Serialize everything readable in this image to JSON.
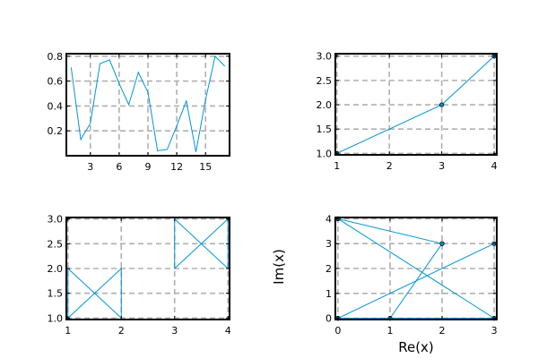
{
  "colors": {
    "series": "#0095d9",
    "grid": "#b0b0b0",
    "axes": "#000000",
    "marker_edge": "#000000"
  },
  "chart_data": [
    {
      "type": "line",
      "xlim": [
        0.5,
        17.5
      ],
      "ylim": [
        0.0,
        0.82
      ],
      "xticks": [
        3,
        6,
        9,
        12,
        15
      ],
      "yticks": [
        0.2,
        0.4,
        0.6,
        0.8
      ],
      "xtick_labels": [
        "3",
        "6",
        "9",
        "12",
        "15"
      ],
      "ytick_labels": [
        "0.2",
        "0.4",
        "0.6",
        "0.8"
      ],
      "grid": true,
      "markers": false,
      "series": [
        {
          "x": [
            1,
            2,
            3,
            4,
            5,
            6,
            7,
            8,
            9,
            10,
            11,
            12,
            13,
            14,
            15,
            16,
            17
          ],
          "y": [
            0.71,
            0.13,
            0.26,
            0.74,
            0.77,
            0.58,
            0.41,
            0.67,
            0.51,
            0.04,
            0.05,
            0.24,
            0.44,
            0.03,
            0.45,
            0.8,
            0.72
          ]
        }
      ]
    },
    {
      "type": "line",
      "xlim": [
        0.97,
        4.05
      ],
      "ylim": [
        0.97,
        3.05
      ],
      "xticks": [
        1,
        2,
        3,
        4
      ],
      "yticks": [
        1.0,
        1.5,
        2.0,
        2.5,
        3.0
      ],
      "xtick_labels": [
        "1",
        "2",
        "3",
        "4"
      ],
      "ytick_labels": [
        "1.0",
        "1.5",
        "2.0",
        "2.5",
        "3.0"
      ],
      "grid": true,
      "markers": true,
      "series": [
        {
          "x": [
            1,
            3,
            4
          ],
          "y": [
            1,
            2,
            3
          ]
        }
      ]
    },
    {
      "type": "line",
      "xlim": [
        0.97,
        4.03
      ],
      "ylim": [
        0.97,
        3.03
      ],
      "xticks": [
        1,
        2,
        3,
        4
      ],
      "yticks": [
        1.0,
        1.5,
        2.0,
        2.5,
        3.0
      ],
      "xtick_labels": [
        "1",
        "2",
        "3",
        "4"
      ],
      "ytick_labels": [
        "1.0",
        "1.5",
        "2.0",
        "2.5",
        "3.0"
      ],
      "grid": true,
      "markers": false,
      "series": [
        {
          "x": [
            1,
            1,
            2,
            2,
            1
          ],
          "y": [
            1,
            2,
            1,
            2,
            1
          ]
        },
        {
          "x": [
            3,
            3,
            4,
            4,
            3
          ],
          "y": [
            2,
            3,
            2,
            3,
            2
          ]
        }
      ]
    },
    {
      "type": "line",
      "xlim": [
        -0.05,
        3.05
      ],
      "ylim": [
        -0.05,
        4.05
      ],
      "xticks": [
        0,
        1,
        2,
        3
      ],
      "yticks": [
        0,
        1,
        2,
        3,
        4
      ],
      "xtick_labels": [
        "0",
        "1",
        "2",
        "3"
      ],
      "ytick_labels": [
        "0",
        "1",
        "2",
        "3",
        "4"
      ],
      "xlabel": "Re(x)",
      "ylabel": "Im(x)",
      "grid": true,
      "markers": true,
      "series": [
        {
          "x": [
            0,
            2,
            0,
            3,
            0,
            1,
            2
          ],
          "y": [
            4,
            3,
            4,
            0,
            0,
            0,
            3
          ]
        },
        {
          "x": [
            0,
            3
          ],
          "y": [
            0,
            3
          ]
        }
      ]
    }
  ]
}
